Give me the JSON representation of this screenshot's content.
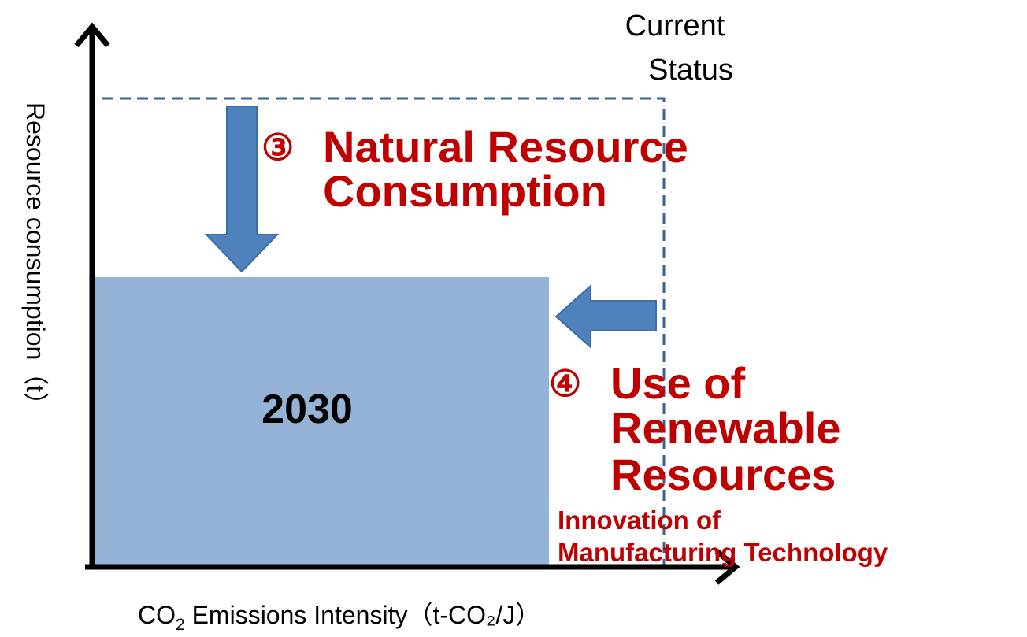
{
  "current_status": [
    "Current",
    "Status"
  ],
  "step3": {
    "marker": "③",
    "lines": [
      "Natural Resource",
      "Consumption"
    ]
  },
  "step4": {
    "marker": "④",
    "lines": [
      "Use of",
      "Renewable",
      "Resources"
    ]
  },
  "innovation": [
    "Innovation of",
    "Manufacturing Technology"
  ],
  "box_label": "2030",
  "y_axis_label": "Resource consumption（t）",
  "x_axis_label": {
    "main": "CO",
    "subscript": "2",
    "rest": " Emissions Intensity（t-CO₂/J）"
  }
}
